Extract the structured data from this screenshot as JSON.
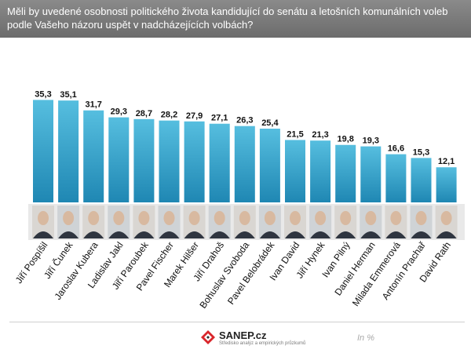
{
  "header": {
    "question": "Měli by uvedené  osobnosti politického života kandidující  do senátu  a letošních komunálních  voleb podle Vašeho názoru uspět v nadcházejících  volbách?"
  },
  "chart_data": {
    "type": "bar",
    "title": "Měli by uvedené  osobnosti politického života kandidující  do senátu  a letošních komunálních  voleb podle Vašeho názoru uspět v nadcházejících  volbách?",
    "categories": [
      "Jiří Pospíšil",
      "Jiří Čunek",
      "Jaroslav Kubera",
      "Ladislav Jakl",
      "Jiří Paroubek",
      "Pavel Fischer",
      "Marek Hilšer",
      "Jiří Drahoš",
      "Bohuslav  Svoboda",
      "Pavel Belobrádek",
      "Ivan David",
      "Jiří Hynek",
      "Ivan Pilný",
      "Daniel Herman",
      "Milada Emmerová",
      "Antonín Prachař",
      "David Rath"
    ],
    "values": [
      35.3,
      35.1,
      31.7,
      29.3,
      28.7,
      28.2,
      27.9,
      27.1,
      26.3,
      25.4,
      21.5,
      21.3,
      19.8,
      19.3,
      16.6,
      15.3,
      12.1
    ],
    "value_labels": [
      "35,3",
      "35,1",
      "31,7",
      "29,3",
      "28,7",
      "28,2",
      "27,9",
      "27,1",
      "26,3",
      "25,4",
      "21,5",
      "21,3",
      "19,8",
      "19,3",
      "16,6",
      "15,3",
      "12,1"
    ],
    "unit": "In %",
    "ylim": [
      0,
      40
    ],
    "xlabel": "",
    "ylabel": "",
    "colors": {
      "bar_top": "#56bedf",
      "bar_bottom": "#1f87b3",
      "label": "#111111"
    }
  },
  "footer": {
    "brand": "SANEP.cz",
    "tagline": "Středisko analýz a empirických průzkumů",
    "unit": "In %"
  }
}
